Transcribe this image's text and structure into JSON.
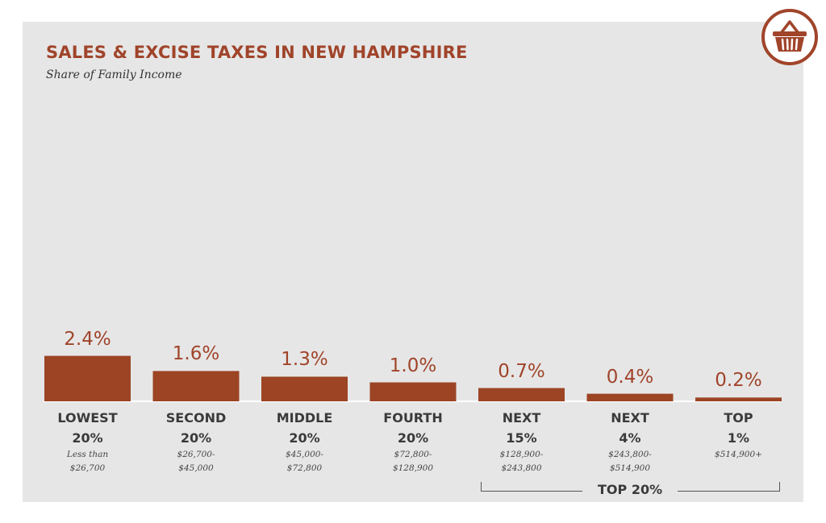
{
  "title": "SALES & EXCISE TAXES IN NEW HAMPSHIRE",
  "subtitle": "Share of Family Income",
  "icon": "shopping-basket-icon",
  "colors": {
    "accent": "#a0442a",
    "bar": "#9c4424",
    "panel": "#e6e6e6"
  },
  "chart_data": {
    "type": "bar",
    "title": "SALES & EXCISE TAXES IN NEW HAMPSHIRE",
    "subtitle": "Share of Family Income",
    "xlabel": "",
    "ylabel": "",
    "grid": false,
    "legend": "none",
    "categories": [
      {
        "name": "LOWEST",
        "pct": "20%",
        "range1": "Less than",
        "range2": "$26,700"
      },
      {
        "name": "SECOND",
        "pct": "20%",
        "range1": "$26,700-",
        "range2": "$45,000"
      },
      {
        "name": "MIDDLE",
        "pct": "20%",
        "range1": "$45,000-",
        "range2": "$72,800"
      },
      {
        "name": "FOURTH",
        "pct": "20%",
        "range1": "$72,800-",
        "range2": "$128,900"
      },
      {
        "name": "NEXT",
        "pct": "15%",
        "range1": "$128,900-",
        "range2": "$243,800"
      },
      {
        "name": "NEXT",
        "pct": "4%",
        "range1": "$243,800-",
        "range2": "$514,900"
      },
      {
        "name": "TOP",
        "pct": "1%",
        "range1": "$514,900+",
        "range2": ""
      }
    ],
    "values": [
      2.4,
      1.6,
      1.3,
      1.0,
      0.7,
      0.4,
      0.2
    ],
    "value_labels": [
      "2.4%",
      "1.6%",
      "1.3%",
      "1.0%",
      "0.7%",
      "0.4%",
      "0.2%"
    ],
    "group": {
      "label": "TOP 20%",
      "from_index": 4,
      "to_index": 6
    }
  }
}
